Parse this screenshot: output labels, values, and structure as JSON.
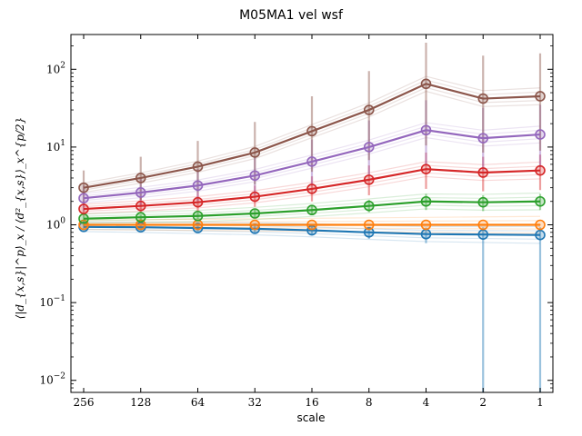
{
  "chart_data": {
    "type": "line",
    "title": "M05MA1 vel wsf",
    "xlabel": "scale",
    "ylabel": "⟨|d_{x,s}|^p⟩_x / ⟨d²_{x,s}⟩_x^{p/2}",
    "x": [
      256,
      128,
      64,
      32,
      16,
      8,
      4,
      2,
      1
    ],
    "x_tick_labels": [
      "256",
      "128",
      "64",
      "32",
      "16",
      "8",
      "4",
      "2",
      "1"
    ],
    "x_axis_reversed": true,
    "x_scale": "log2",
    "y_scale": "log",
    "ylim": [
      0.007,
      280
    ],
    "y_ticks": [
      0.01,
      0.1,
      1,
      10,
      100
    ],
    "y_tick_labels": [
      "10",
      "10",
      "10",
      "10",
      "10"
    ],
    "y_tick_exponents": [
      "−2",
      "−1",
      "0",
      "1",
      "2"
    ],
    "grid": false,
    "series": [
      {
        "color": "#1f77b4",
        "values": [
          0.94,
          0.93,
          0.91,
          0.89,
          0.85,
          0.8,
          0.76,
          0.75,
          0.74
        ],
        "err_low": [
          0.85,
          0.84,
          0.82,
          0.8,
          0.74,
          0.66,
          0.58,
          0.004,
          0.004
        ],
        "err_high": [
          1.02,
          1.02,
          1.0,
          0.98,
          0.96,
          0.94,
          0.92,
          0.93,
          0.93
        ]
      },
      {
        "color": "#ff7f0e",
        "values": [
          1.0,
          1.0,
          1.0,
          1.0,
          1.0,
          1.0,
          1.0,
          1.0,
          1.0
        ],
        "err_low": [
          0.98,
          0.98,
          0.98,
          0.98,
          0.98,
          0.98,
          0.98,
          0.98,
          0.98
        ],
        "err_high": [
          1.02,
          1.02,
          1.02,
          1.02,
          1.02,
          1.02,
          1.02,
          1.02,
          1.02
        ]
      },
      {
        "color": "#2ca02c",
        "values": [
          1.2,
          1.25,
          1.3,
          1.4,
          1.55,
          1.75,
          2.0,
          1.95,
          2.0
        ],
        "err_low": [
          1.1,
          1.15,
          1.18,
          1.25,
          1.35,
          1.45,
          1.55,
          1.5,
          1.55
        ],
        "err_high": [
          1.3,
          1.35,
          1.45,
          1.6,
          1.8,
          2.1,
          2.5,
          2.4,
          2.5
        ]
      },
      {
        "color": "#d62728",
        "values": [
          1.6,
          1.75,
          1.95,
          2.3,
          2.9,
          3.8,
          5.2,
          4.7,
          5.0
        ],
        "err_low": [
          1.3,
          1.4,
          1.5,
          1.7,
          2.0,
          2.4,
          2.9,
          2.7,
          2.8
        ],
        "err_high": [
          2.0,
          2.3,
          2.6,
          3.2,
          4.2,
          5.8,
          8.5,
          7.5,
          8.0
        ]
      },
      {
        "color": "#9467bd",
        "values": [
          2.2,
          2.6,
          3.2,
          4.3,
          6.5,
          10.0,
          16.5,
          13.0,
          14.5
        ],
        "err_low": [
          1.5,
          1.7,
          2.0,
          2.4,
          3.2,
          4.3,
          5.8,
          5.0,
          5.5
        ],
        "err_high": [
          3.2,
          4.0,
          5.2,
          7.5,
          12.5,
          22.0,
          40.0,
          32.0,
          35.0
        ]
      },
      {
        "color": "#8c564b",
        "values": [
          3.0,
          4.0,
          5.6,
          8.5,
          16.0,
          30.0,
          65.0,
          42.0,
          45.0
        ],
        "err_low": [
          1.8,
          2.1,
          2.6,
          3.3,
          4.8,
          6.8,
          10.5,
          8.5,
          9.0
        ],
        "err_high": [
          5.0,
          7.5,
          12.0,
          21.0,
          45.0,
          95.0,
          220.0,
          150.0,
          160.0
        ]
      }
    ]
  }
}
